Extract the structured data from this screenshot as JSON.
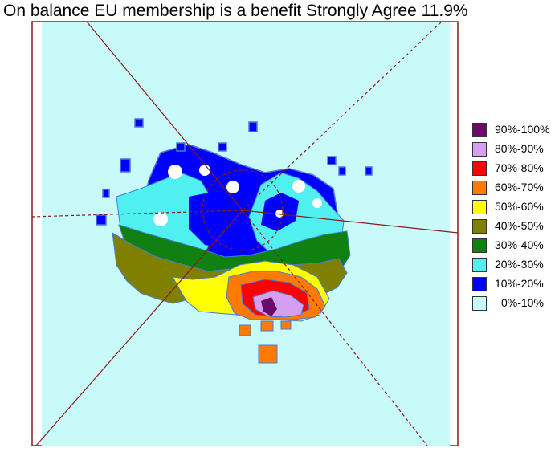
{
  "title": "On balance EU membership is a benefit Strongly Agree 11.9%",
  "colors": {
    "frame": "#8b1a1a",
    "background_fill": "#c8fafa",
    "outline": "#4a7ad8"
  },
  "legend": [
    {
      "label": "90%-100%",
      "color": "#6a0a6a"
    },
    {
      "label": "80%-90%",
      "color": "#d49ff0"
    },
    {
      "label": "70%-80%",
      "color": "#ff0000"
    },
    {
      "label": "60%-70%",
      "color": "#ff7a00"
    },
    {
      "label": "50%-60%",
      "color": "#ffff00"
    },
    {
      "label": "40%-50%",
      "color": "#808000"
    },
    {
      "label": "30%-40%",
      "color": "#108010"
    },
    {
      "label": "20%-30%",
      "color": "#50f0f0"
    },
    {
      "label": "10%-20%",
      "color": "#0000ff"
    },
    {
      "label": "0%-10%",
      "color": "#c8fafa"
    }
  ]
}
